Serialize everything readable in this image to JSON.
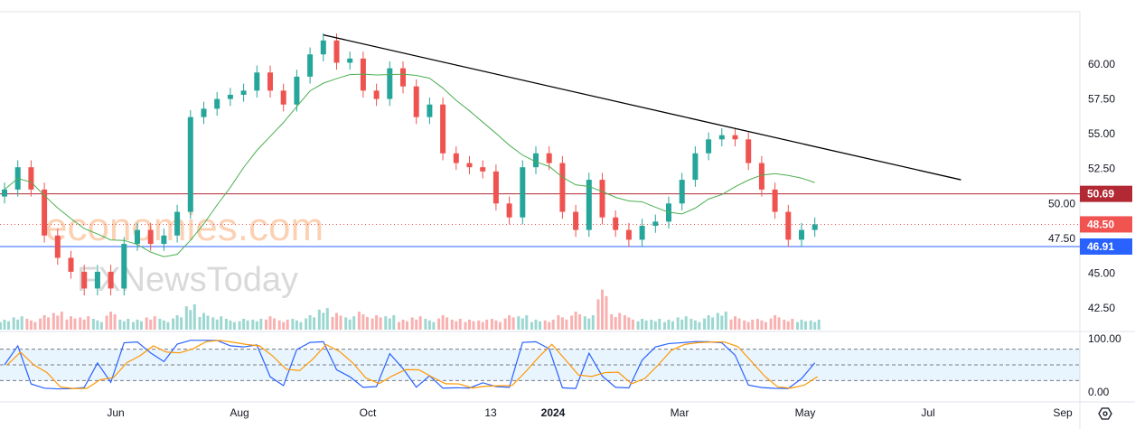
{
  "watermark": {
    "brand1": "economies.com",
    "brand2": "FXNewsToday"
  },
  "chart_data": {
    "type": "candlestick",
    "title": "",
    "x_ticks": [
      "Jun",
      "Aug",
      "Oct",
      "13",
      "2024",
      "Mar",
      "May",
      "Jul",
      "Sep"
    ],
    "y_ticks": [
      "60.00",
      "57.50",
      "55.00",
      "52.50",
      "50.00",
      "47.50",
      "45.00",
      "42.50"
    ],
    "ylim": [
      41.5,
      63
    ],
    "closes": [
      51.0,
      52.6,
      51.0,
      47.7,
      46.1,
      45.1,
      43.9,
      45.1,
      43.9,
      47.1,
      48.1,
      47.1,
      47.7,
      49.4,
      56.2,
      56.8,
      57.5,
      57.8,
      58.1,
      59.4,
      58.1,
      57.1,
      59.1,
      60.7,
      61.7,
      60.1,
      60.4,
      58.1,
      57.5,
      59.7,
      58.4,
      56.2,
      57.1,
      53.6,
      52.9,
      52.6,
      52.3,
      50.0,
      49.0,
      52.6,
      53.6,
      52.9,
      49.4,
      48.1,
      51.7,
      49.0,
      48.1,
      47.4,
      48.4,
      48.7,
      50.0,
      51.7,
      53.6,
      54.6,
      54.9,
      54.6,
      52.9,
      51.0,
      49.4,
      47.4,
      48.1,
      48.5
    ],
    "volume": [
      3,
      4,
      3,
      4,
      5,
      4,
      4,
      3,
      5,
      3,
      3,
      4,
      3,
      4,
      7,
      5,
      4,
      3,
      3,
      3,
      4,
      3,
      3,
      4,
      6,
      5,
      4,
      5,
      4,
      4,
      3,
      4,
      3,
      4,
      3,
      3,
      3,
      3,
      4,
      4,
      3,
      3,
      4,
      5,
      4,
      12,
      5,
      4,
      3,
      3,
      3,
      4,
      3,
      4,
      5,
      4,
      3,
      3,
      4,
      3,
      3,
      3
    ],
    "horizontal_levels": [
      {
        "label": "50.69",
        "value": 50.69,
        "color": "#b22833",
        "style": "solid"
      },
      {
        "label": "48.50",
        "value": 48.5,
        "color": "#f05350",
        "style": "dotted"
      },
      {
        "label": "46.91",
        "value": 46.91,
        "color": "#2962ff",
        "style": "solid"
      }
    ],
    "trendline": {
      "from": [
        24,
        62.1
      ],
      "to": [
        72,
        51.7
      ]
    },
    "moving_average_period": 10,
    "oscillator": {
      "name": "Stochastic",
      "y_ticks": [
        "100.00",
        "0.00"
      ],
      "levels": [
        80,
        50,
        20
      ]
    },
    "colors": {
      "up": "#26a69a",
      "down": "#ef5350",
      "ma": "#4caf50",
      "k": "#2962ff",
      "d": "#ff9800"
    }
  }
}
